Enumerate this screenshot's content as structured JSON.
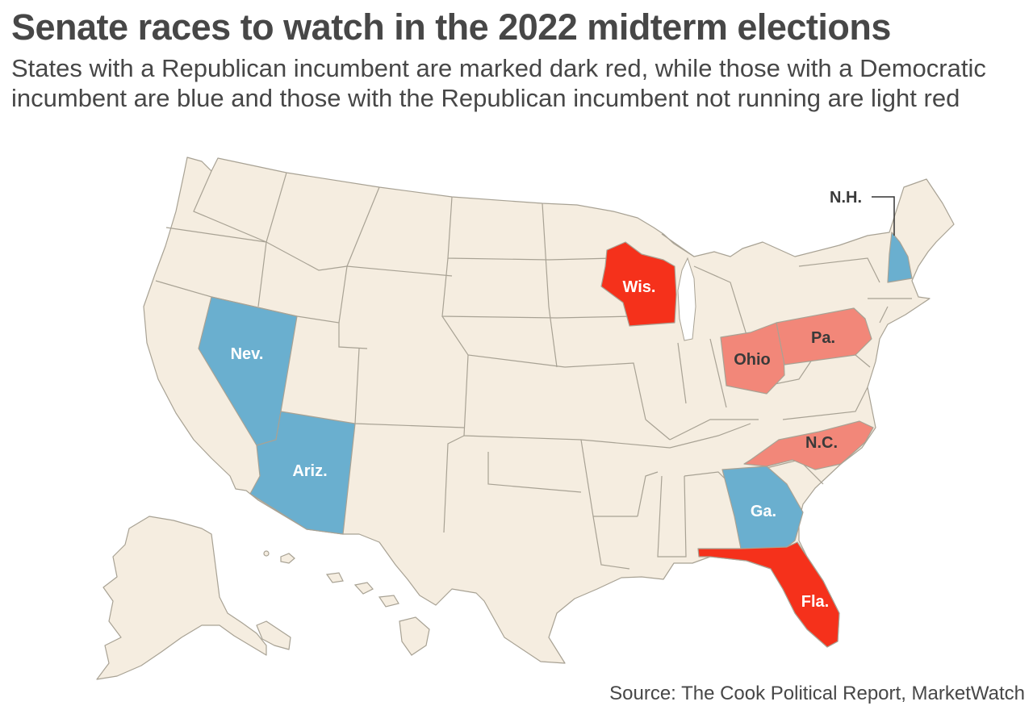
{
  "title": "Senate races to watch in the 2022 midterm elections",
  "subtitle": "States with a Republican incumbent are marked dark red, while those with a Democratic incumbent are blue and those with the Republican incumbent not running are light red",
  "source": "Source: The Cook Political Report, MarketWatch",
  "colors": {
    "republican_incumbent": "#f5311b",
    "democratic_incumbent": "#6aafcf",
    "republican_not_running": "#f28779",
    "other_state": "#f5ede0",
    "border": "#a8a294"
  },
  "highlighted_states": [
    {
      "name": "Wisconsin",
      "label": "Wis.",
      "category": "republican_incumbent"
    },
    {
      "name": "Florida",
      "label": "Fla.",
      "category": "republican_incumbent"
    },
    {
      "name": "Nevada",
      "label": "Nev.",
      "category": "democratic_incumbent"
    },
    {
      "name": "Arizona",
      "label": "Ariz.",
      "category": "democratic_incumbent"
    },
    {
      "name": "Georgia",
      "label": "Ga.",
      "category": "democratic_incumbent"
    },
    {
      "name": "New Hampshire",
      "label": "N.H.",
      "category": "democratic_incumbent"
    },
    {
      "name": "Ohio",
      "label": "Ohio",
      "category": "republican_not_running"
    },
    {
      "name": "Pennsylvania",
      "label": "Pa.",
      "category": "republican_not_running"
    },
    {
      "name": "North Carolina",
      "label": "N.C.",
      "category": "republican_not_running"
    }
  ]
}
